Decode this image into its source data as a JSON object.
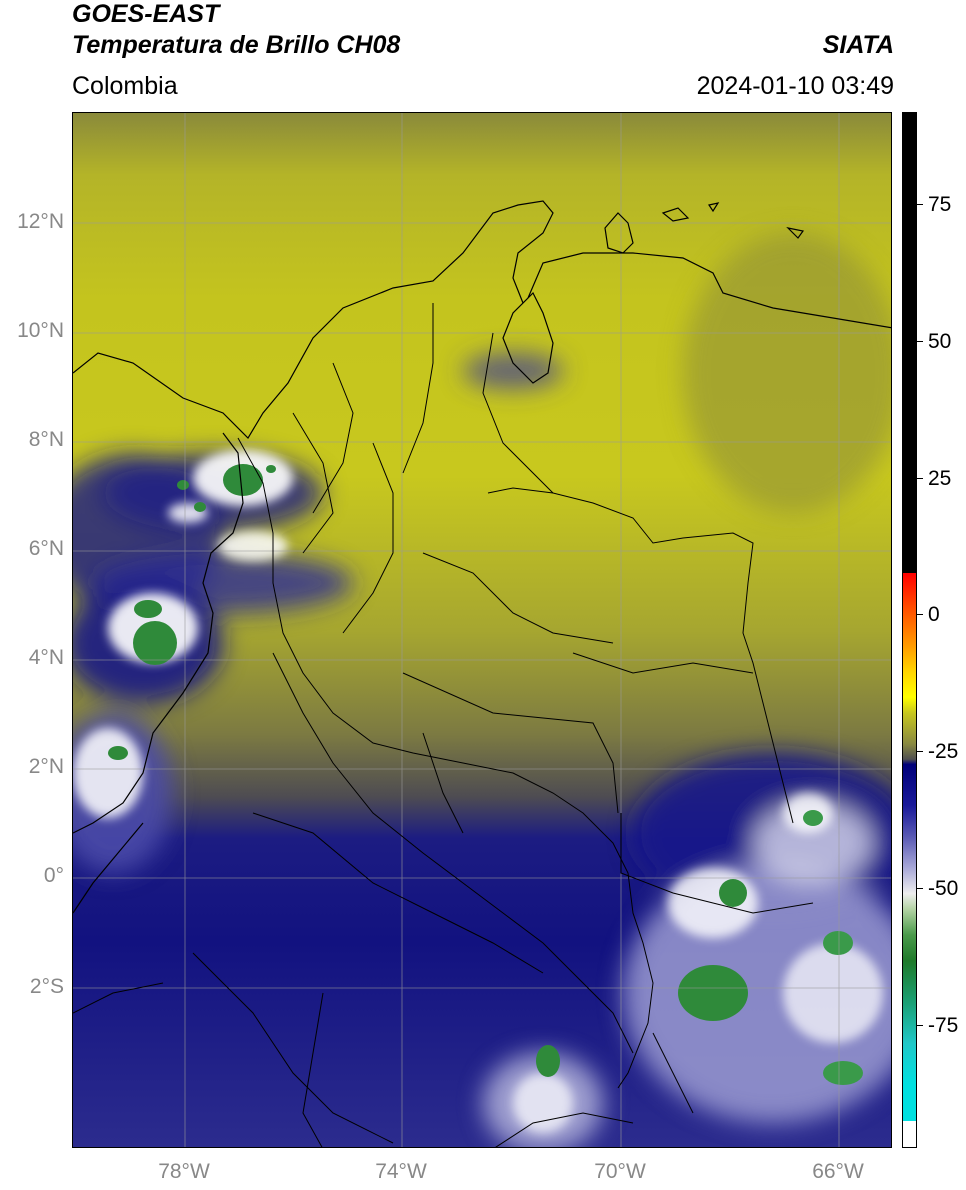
{
  "header": {
    "title_line1": "GOES-EAST",
    "title_line2": "Temperatura de Brillo CH08",
    "region": "Colombia",
    "agency": "SIATA",
    "datetime": "2024-01-10 03:49"
  },
  "map": {
    "lat_labels": [
      "12°N",
      "10°N",
      "8°N",
      "6°N",
      "4°N",
      "2°N",
      "0°",
      "2°S"
    ],
    "lon_labels": [
      "78°W",
      "74°W",
      "70°W",
      "66°W"
    ]
  },
  "colorbar": {
    "tick_labels": [
      "75",
      "50",
      "25",
      "0",
      "-25",
      "-50",
      "-75"
    ],
    "colors": {
      "warm": "#000000",
      "red": "#ff0000",
      "yellow": "#ffff00",
      "olive": "#c8c81e",
      "navy": "#00007a",
      "white": "#eeeeee",
      "green": "#1f7a2a",
      "cyan": "#00e0e0"
    }
  }
}
